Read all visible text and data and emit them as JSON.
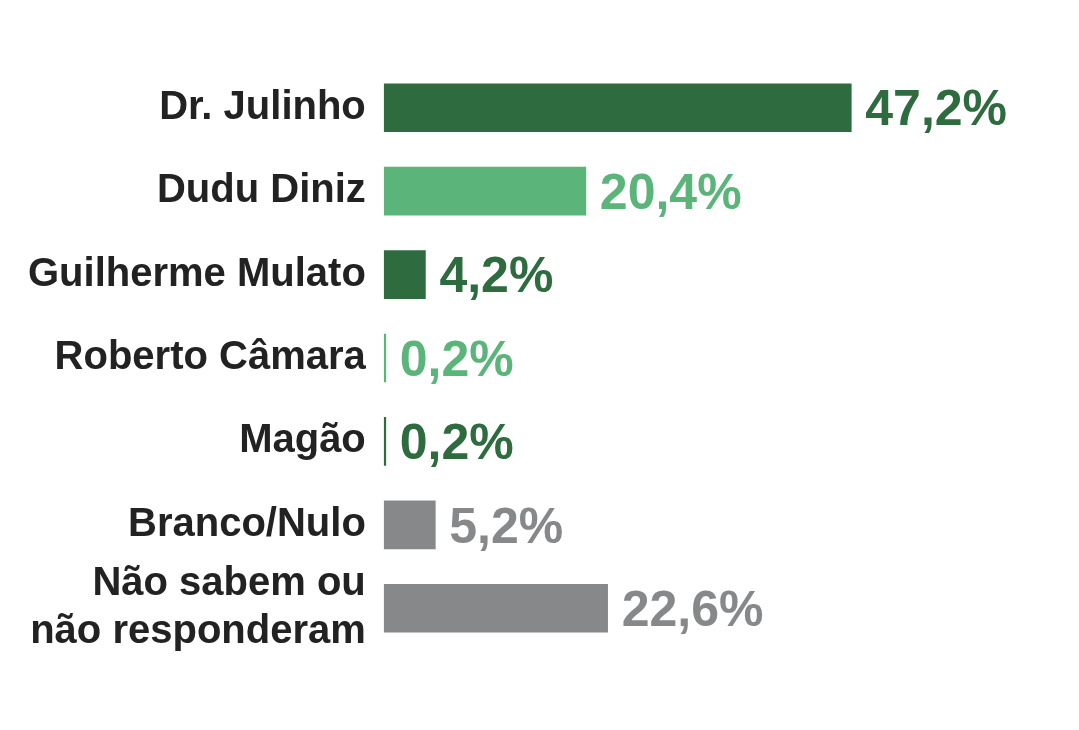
{
  "chart_data": {
    "type": "bar",
    "orientation": "horizontal",
    "categories": [
      "Dr. Julinho",
      "Dudu Diniz",
      "Guilherme Mulato",
      "Roberto Câmara",
      "Magão",
      "Branco/Nulo",
      "Não sabem ou\nnão responderam"
    ],
    "values": [
      47.2,
      20.4,
      4.2,
      0.2,
      0.2,
      5.2,
      22.6
    ],
    "value_labels": [
      "47,2%",
      "20,4%",
      "4,2%",
      "0,2%",
      "0,2%",
      "5,2%",
      "22,6%"
    ],
    "colors": [
      "#2e6b3f",
      "#5bb57a",
      "#2e6b3f",
      "#5bb57a",
      "#2e6b3f",
      "#87888a",
      "#87888a"
    ],
    "legend": false
  }
}
